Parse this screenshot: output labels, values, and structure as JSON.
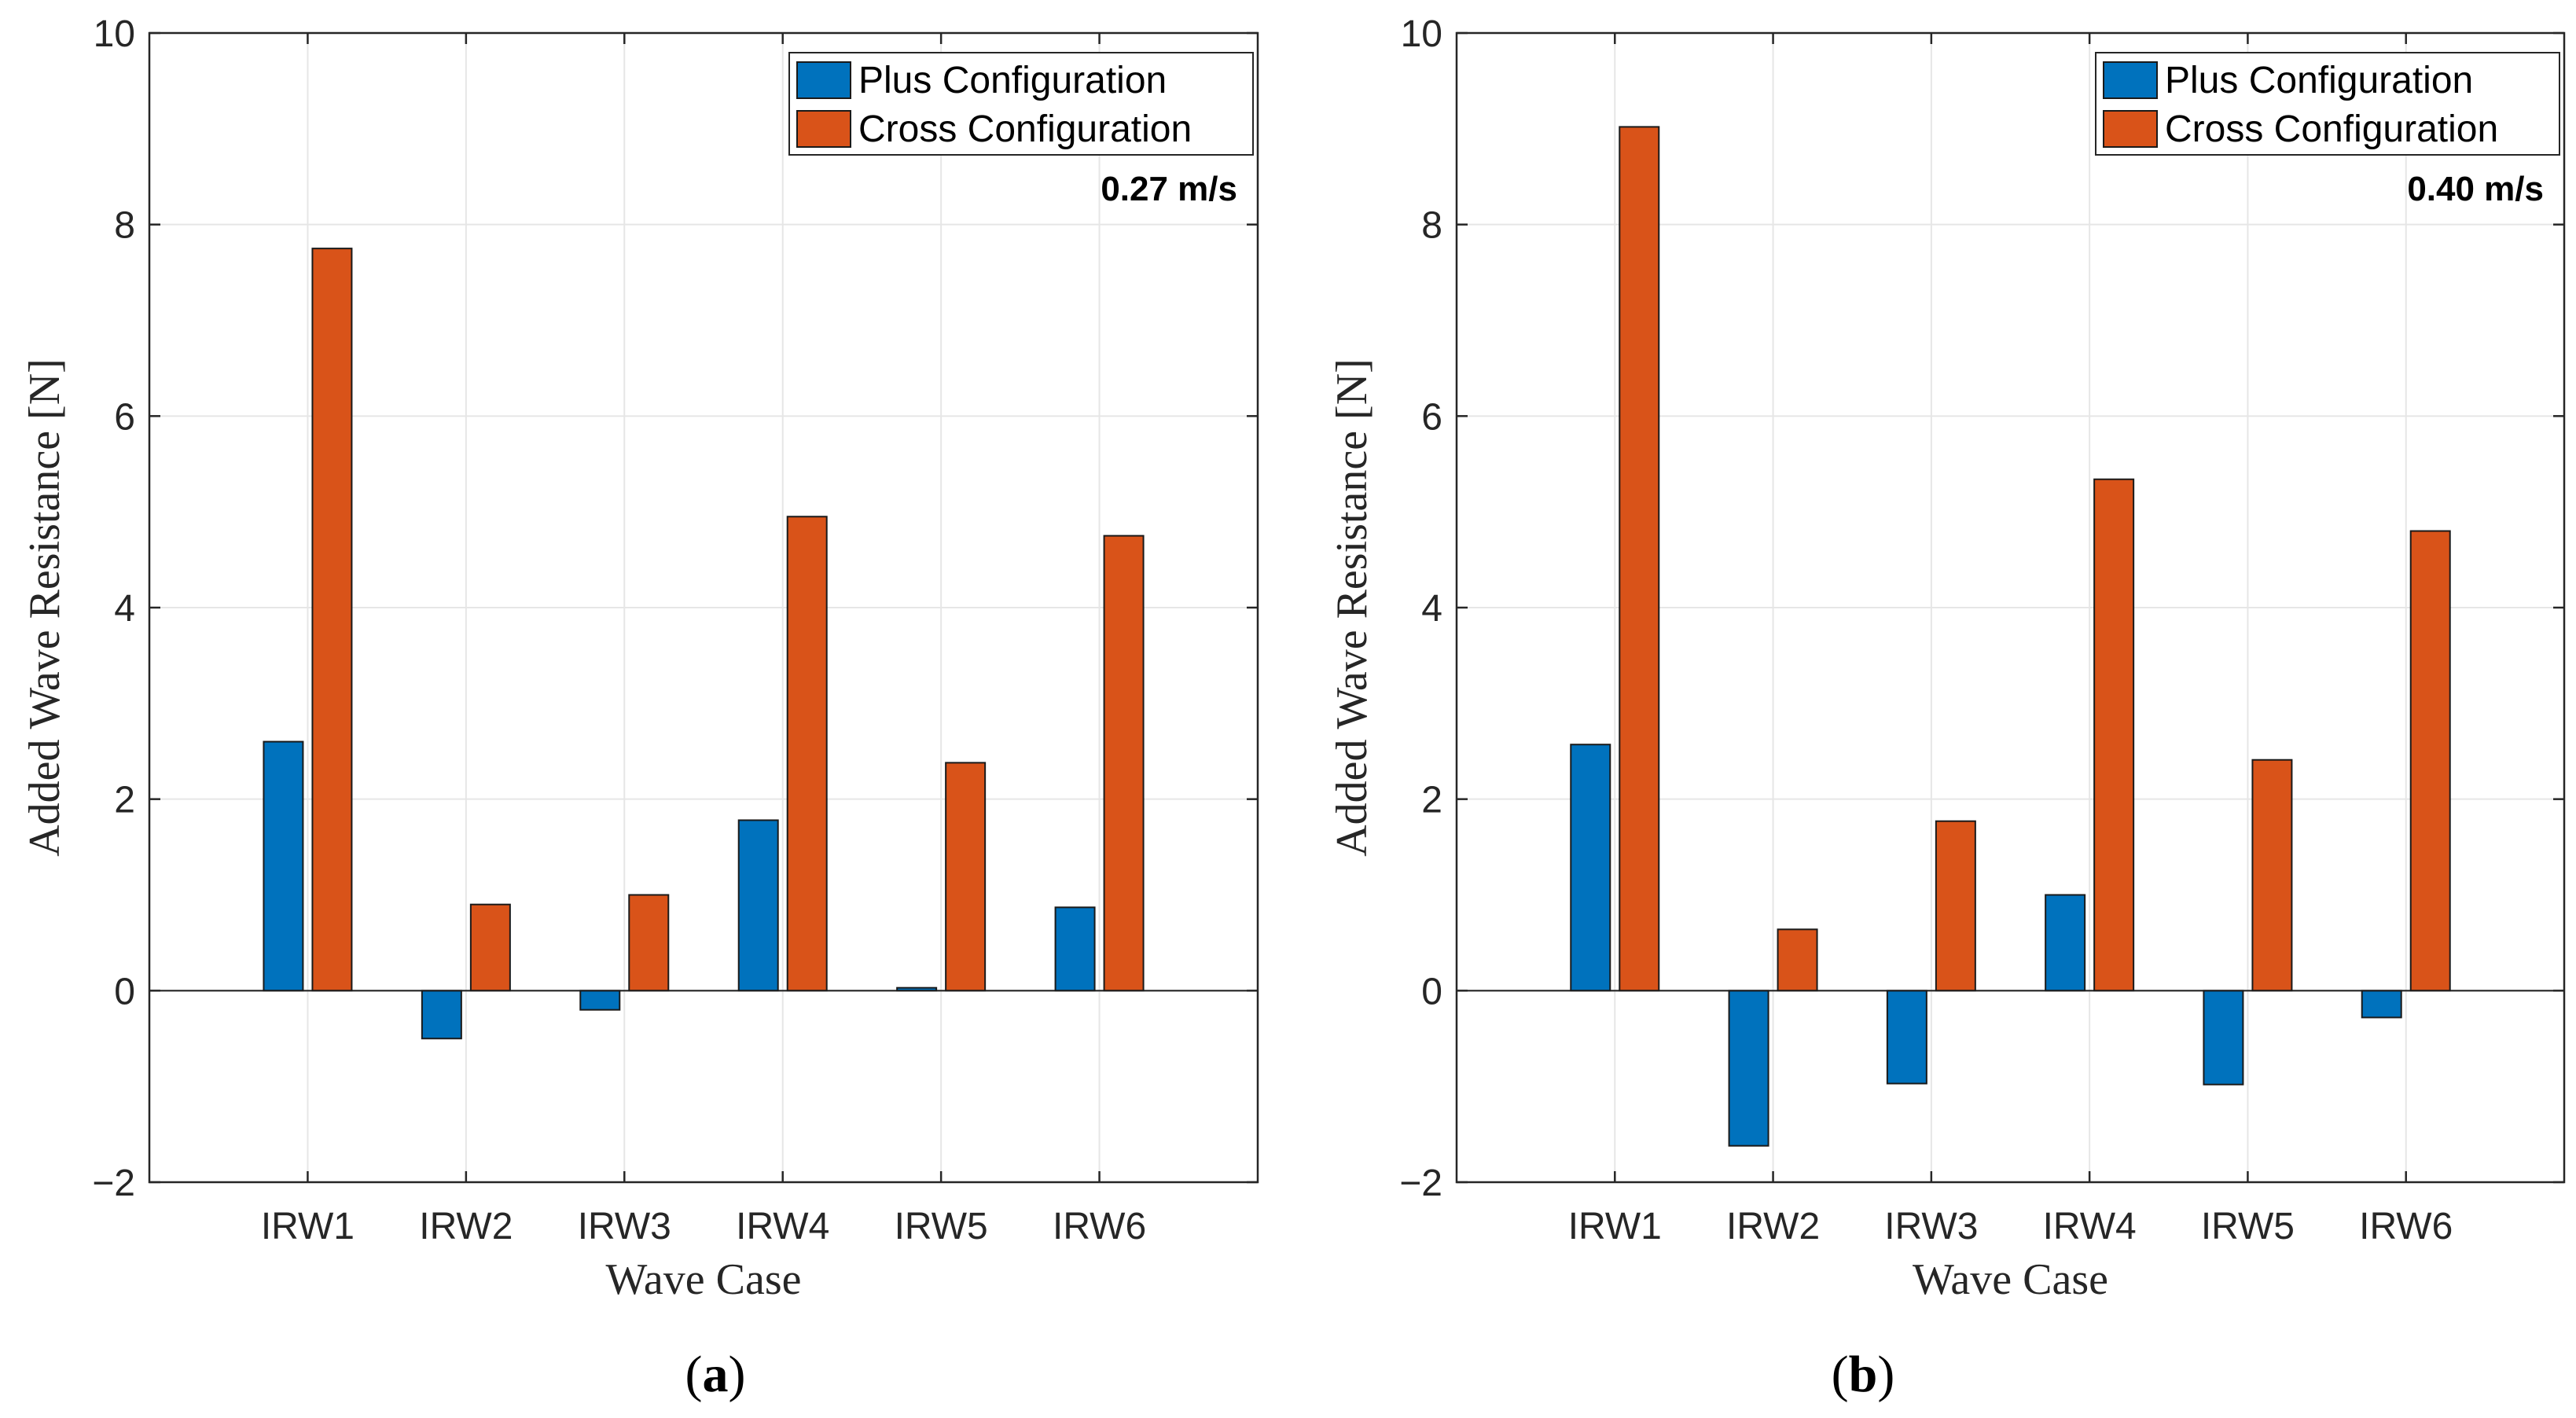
{
  "colors": {
    "plus": "#0072BD",
    "cross": "#D95319",
    "grid": "#e6e6e6",
    "axis": "#262626"
  },
  "chart_data": [
    {
      "type": "bar",
      "caption_letter": "a",
      "speed_label": "0.27 m/s",
      "xlabel": "Wave Case",
      "ylabel": "Added Wave Resistance [N]",
      "ylim": [
        -2,
        10
      ],
      "yticks": [
        -2,
        0,
        2,
        4,
        6,
        8,
        10
      ],
      "ytick_labels": [
        "−2",
        "0",
        "2",
        "4",
        "6",
        "8",
        "10"
      ],
      "grid": true,
      "legend_position": "top-right",
      "categories": [
        "IRW1",
        "IRW2",
        "IRW3",
        "IRW4",
        "IRW5",
        "IRW6"
      ],
      "series": [
        {
          "name": "Plus Configuration",
          "values": [
            2.6,
            -0.5,
            -0.2,
            1.78,
            0.03,
            0.87
          ]
        },
        {
          "name": "Cross Configuration",
          "values": [
            7.75,
            0.9,
            1.0,
            4.95,
            2.38,
            4.75
          ]
        }
      ]
    },
    {
      "type": "bar",
      "caption_letter": "b",
      "speed_label": "0.40 m/s",
      "xlabel": "Wave Case",
      "ylabel": "Added Wave Resistance [N]",
      "ylim": [
        -2,
        10
      ],
      "yticks": [
        -2,
        0,
        2,
        4,
        6,
        8,
        10
      ],
      "ytick_labels": [
        "−2",
        "0",
        "2",
        "4",
        "6",
        "8",
        "10"
      ],
      "grid": true,
      "legend_position": "top-right",
      "categories": [
        "IRW1",
        "IRW2",
        "IRW3",
        "IRW4",
        "IRW5",
        "IRW6"
      ],
      "series": [
        {
          "name": "Plus Configuration",
          "values": [
            2.57,
            -1.62,
            -0.97,
            1.0,
            -0.98,
            -0.28
          ]
        },
        {
          "name": "Cross Configuration",
          "values": [
            9.02,
            0.64,
            1.77,
            5.34,
            2.41,
            4.8
          ]
        }
      ]
    }
  ]
}
